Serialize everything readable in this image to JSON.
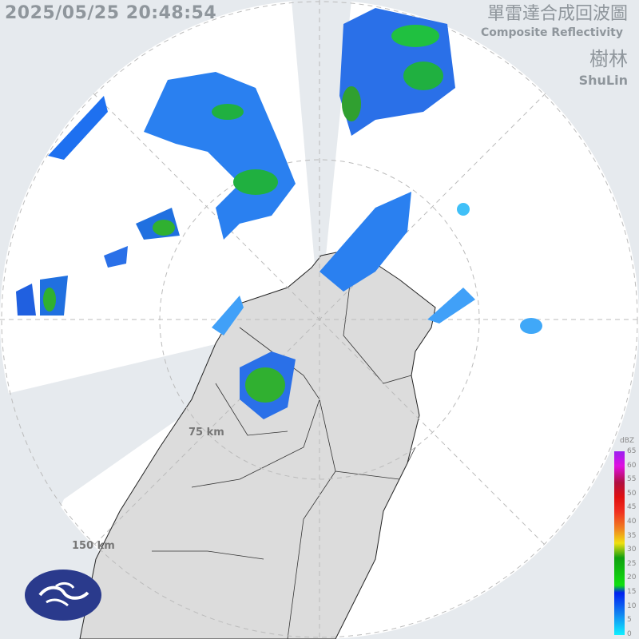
{
  "header": {
    "timestamp": "2025/05/25 20:48:54",
    "title_zh": "單雷達合成回波圖",
    "title_en": "Composite Reflectivity",
    "station_zh": "樹林",
    "station_en": "ShuLin"
  },
  "range_rings": [
    {
      "label": "75 km",
      "km": 75
    },
    {
      "label": "150 km",
      "km": 150
    }
  ],
  "legend": {
    "unit": "dBZ",
    "ticks": [
      "65",
      "60",
      "55",
      "50",
      "45",
      "40",
      "35",
      "30",
      "25",
      "20",
      "15",
      "10",
      "5",
      "0"
    ]
  },
  "logo": {
    "name": "cwa-logo-icon",
    "color": "#2a3a8c"
  },
  "colors": {
    "background": "#e6eaee",
    "coverage": "#ffffff",
    "land": "#dcdcdc",
    "echo_light": "#1e90f0",
    "echo_mid": "#2040e0",
    "echo_green": "#20c020"
  }
}
